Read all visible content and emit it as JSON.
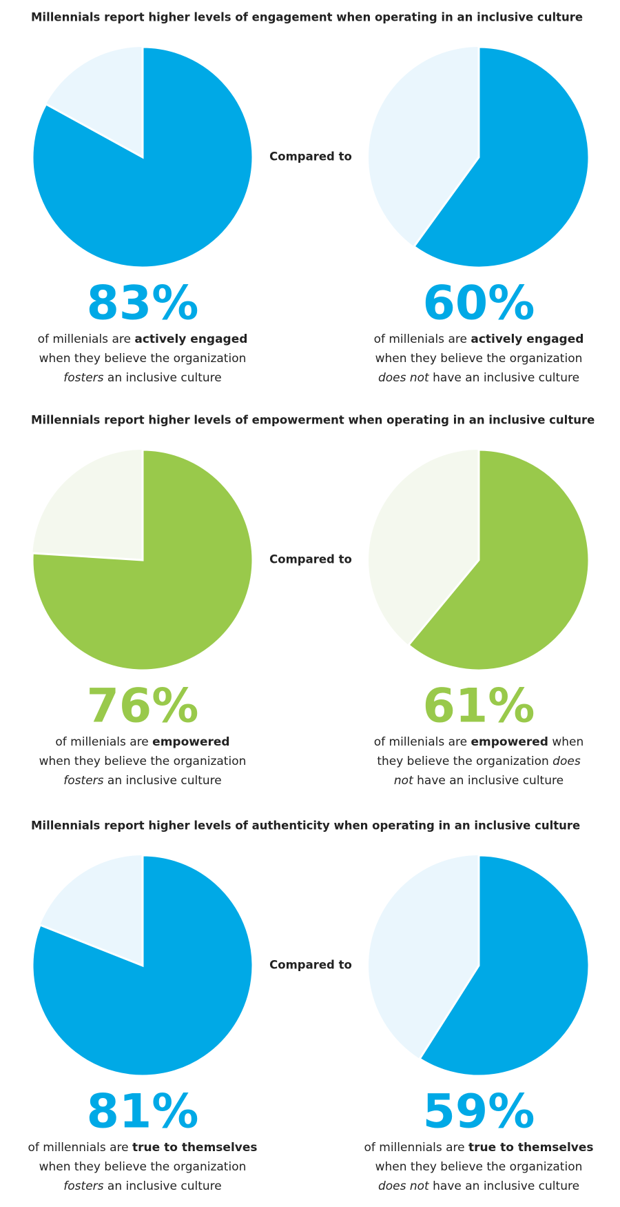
{
  "chart_data": [
    {
      "type": "pie",
      "title": "Millennials report higher levels of engagement when operating in an inclusive culture",
      "compare_label": "Compared to",
      "pies": [
        {
          "values": [
            83
          ],
          "value_labels": [
            "83%"
          ],
          "color": "#00a9e6",
          "background_color": "#eaf6fd",
          "description": [
            [
              {
                "text": "of millenials are "
              },
              {
                "text": "actively engaged",
                "style": "bold"
              }
            ],
            [
              {
                "text": "when they believe the organization"
              }
            ],
            [
              {
                "text": "fosters",
                "style": "italic"
              },
              {
                "text": " an inclusive culture"
              }
            ]
          ]
        },
        {
          "values": [
            60
          ],
          "value_labels": [
            "60%"
          ],
          "color": "#00a9e6",
          "background_color": "#eaf6fd",
          "description": [
            [
              {
                "text": "of millenials are "
              },
              {
                "text": "actively engaged",
                "style": "bold"
              }
            ],
            [
              {
                "text": "when they believe the organization"
              }
            ],
            [
              {
                "text": "does not",
                "style": "italic"
              },
              {
                "text": " have an inclusive culture"
              }
            ]
          ]
        }
      ]
    },
    {
      "type": "pie",
      "title": "Millennials report higher levels of empowerment when operating in an inclusive culture",
      "compare_label": "Compared to",
      "pies": [
        {
          "values": [
            76
          ],
          "value_labels": [
            "76%"
          ],
          "color": "#99c94b",
          "background_color": "#f4f8ee",
          "description": [
            [
              {
                "text": "of millenials are "
              },
              {
                "text": "empowered",
                "style": "bold"
              }
            ],
            [
              {
                "text": "when they believe the organization"
              }
            ],
            [
              {
                "text": "fosters",
                "style": "italic"
              },
              {
                "text": " an inclusive culture"
              }
            ]
          ]
        },
        {
          "values": [
            61
          ],
          "value_labels": [
            "61%"
          ],
          "color": "#99c94b",
          "background_color": "#f4f8ee",
          "description": [
            [
              {
                "text": "of millenials are "
              },
              {
                "text": "empowered",
                "style": "bold"
              },
              {
                "text": " when"
              }
            ],
            [
              {
                "text": "they believe the organization "
              },
              {
                "text": "does",
                "style": "italic"
              }
            ],
            [
              {
                "text": "not",
                "style": "italic"
              },
              {
                "text": " have an inclusive culture"
              }
            ]
          ]
        }
      ]
    },
    {
      "type": "pie",
      "title": "Millennials report higher levels of authenticity when operating in an inclusive culture",
      "compare_label": "Compared to",
      "pies": [
        {
          "values": [
            81
          ],
          "value_labels": [
            "81%"
          ],
          "color": "#00a9e6",
          "background_color": "#eaf6fd",
          "description": [
            [
              {
                "text": "of millennials are "
              },
              {
                "text": "true to themselves",
                "style": "bold"
              }
            ],
            [
              {
                "text": "when they believe the organization"
              }
            ],
            [
              {
                "text": "fosters",
                "style": "italic"
              },
              {
                "text": " an inclusive culture"
              }
            ]
          ]
        },
        {
          "values": [
            59
          ],
          "value_labels": [
            "59%"
          ],
          "color": "#00a9e6",
          "background_color": "#eaf6fd",
          "description": [
            [
              {
                "text": "of millennials are "
              },
              {
                "text": "true to themselves",
                "style": "bold"
              }
            ],
            [
              {
                "text": "when they believe the organization"
              }
            ],
            [
              {
                "text": "does not",
                "style": "italic"
              },
              {
                "text": " have an inclusive culture"
              }
            ]
          ]
        }
      ]
    }
  ]
}
